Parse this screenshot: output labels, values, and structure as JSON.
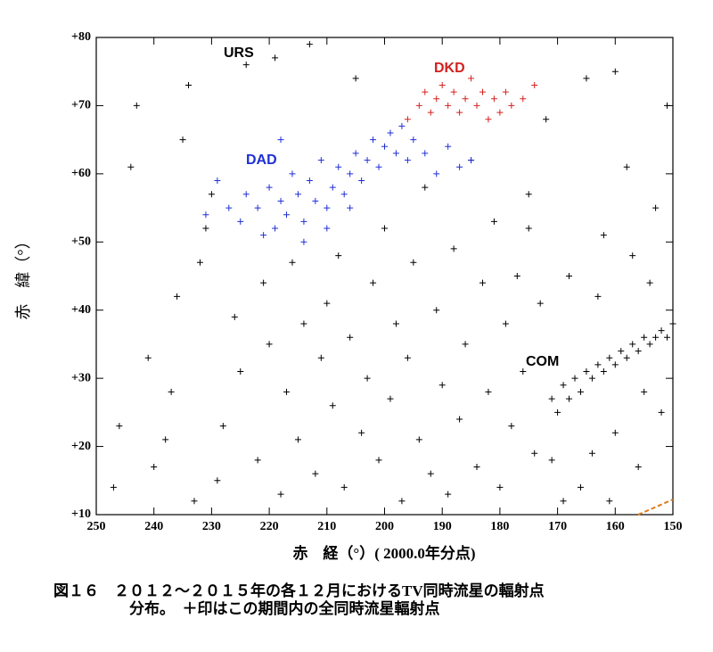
{
  "chart_data": {
    "type": "scatter",
    "xlabel": "赤　経（°）( 2000.0年分点)",
    "ylabel": "赤　緯（°）",
    "caption": [
      "図１６　２０１２～２０１５年の各１２月におけるTV同時流星の輻射点",
      "分布。　＋印はこの期間内の全同時流星輻射点"
    ],
    "annotations": [
      "URS",
      "DKD",
      "DAD",
      "COM"
    ],
    "xlim": [
      250,
      150
    ],
    "xticks": [
      250,
      240,
      230,
      220,
      210,
      200,
      190,
      180,
      170,
      160,
      150
    ],
    "ylim": [
      10,
      80
    ],
    "yticks": [
      {
        "value": 10,
        "label": "+10"
      },
      {
        "value": 20,
        "label": "+20"
      },
      {
        "value": 30,
        "label": "+30"
      },
      {
        "value": 40,
        "label": "+40"
      },
      {
        "value": 50,
        "label": "+50"
      },
      {
        "value": 60,
        "label": "+60"
      },
      {
        "value": 70,
        "label": "+70"
      },
      {
        "value": 80,
        "label": "+80"
      }
    ],
    "series": [
      {
        "color": "#000000",
        "x": [
          247,
          246,
          244,
          243,
          241,
          240,
          238,
          237,
          236,
          235,
          234,
          233,
          232,
          231,
          230,
          229,
          228,
          226,
          225,
          224,
          222,
          221,
          220,
          219,
          218,
          217,
          216,
          215,
          214,
          213,
          212,
          211,
          210,
          209,
          208,
          207,
          206,
          205,
          204,
          203,
          202,
          201,
          200,
          199,
          198,
          197,
          196,
          195,
          194,
          193,
          192,
          191,
          190,
          189,
          188,
          187,
          186,
          185,
          184,
          183,
          182,
          181,
          180,
          179,
          178,
          177,
          176,
          175,
          174,
          173,
          172,
          171,
          170,
          169,
          168,
          167,
          166,
          165,
          164,
          163,
          162,
          161,
          160,
          159,
          158,
          157,
          156,
          155,
          154,
          153,
          152,
          151,
          150,
          168,
          166,
          164,
          162,
          160,
          158,
          156,
          154,
          152,
          151,
          165,
          160,
          175,
          163,
          157,
          153,
          171,
          169,
          161,
          155
        ],
        "values": [
          14,
          23,
          61,
          70,
          33,
          17,
          21,
          28,
          42,
          65,
          73,
          12,
          47,
          52,
          57,
          15,
          23,
          39,
          31,
          76,
          18,
          44,
          35,
          77,
          13,
          28,
          47,
          21,
          38,
          79,
          16,
          33,
          41,
          26,
          48,
          14,
          36,
          74,
          22,
          30,
          44,
          18,
          52,
          27,
          38,
          12,
          33,
          47,
          21,
          58,
          16,
          40,
          29,
          13,
          49,
          24,
          35,
          62,
          17,
          44,
          28,
          53,
          14,
          38,
          23,
          45,
          31,
          57,
          19,
          41,
          68,
          27,
          25,
          29,
          27,
          30,
          28,
          31,
          30,
          32,
          31,
          33,
          32,
          34,
          33,
          35,
          34,
          36,
          35,
          36,
          37,
          36,
          38,
          45,
          14,
          19,
          51,
          22,
          61,
          17,
          44,
          25,
          70,
          74,
          75,
          52,
          42,
          48,
          55,
          18,
          12,
          12,
          28
        ]
      },
      {
        "color": "#1f2fd6",
        "x": [
          231,
          229,
          227,
          225,
          224,
          222,
          221,
          220,
          219,
          218,
          217,
          216,
          215,
          214,
          213,
          212,
          211,
          210,
          209,
          208,
          207,
          206,
          205,
          204,
          203,
          202,
          201,
          200,
          199,
          198,
          197,
          196,
          195,
          193,
          191,
          189,
          187,
          185,
          210,
          214,
          218,
          206
        ],
        "values": [
          54,
          59,
          55,
          53,
          57,
          55,
          51,
          58,
          52,
          56,
          54,
          60,
          57,
          53,
          59,
          56,
          62,
          55,
          58,
          61,
          57,
          60,
          63,
          59,
          62,
          65,
          61,
          64,
          66,
          63,
          67,
          62,
          65,
          63,
          60,
          64,
          61,
          62,
          52,
          50,
          65,
          55
        ]
      },
      {
        "color": "#d42020",
        "x": [
          196,
          194,
          193,
          192,
          191,
          190,
          189,
          188,
          187,
          186,
          185,
          184,
          183,
          182,
          181,
          180,
          179,
          178,
          176,
          174
        ],
        "values": [
          68,
          70,
          72,
          69,
          71,
          73,
          70,
          72,
          69,
          71,
          74,
          70,
          72,
          68,
          71,
          69,
          72,
          70,
          71,
          73
        ]
      }
    ]
  }
}
